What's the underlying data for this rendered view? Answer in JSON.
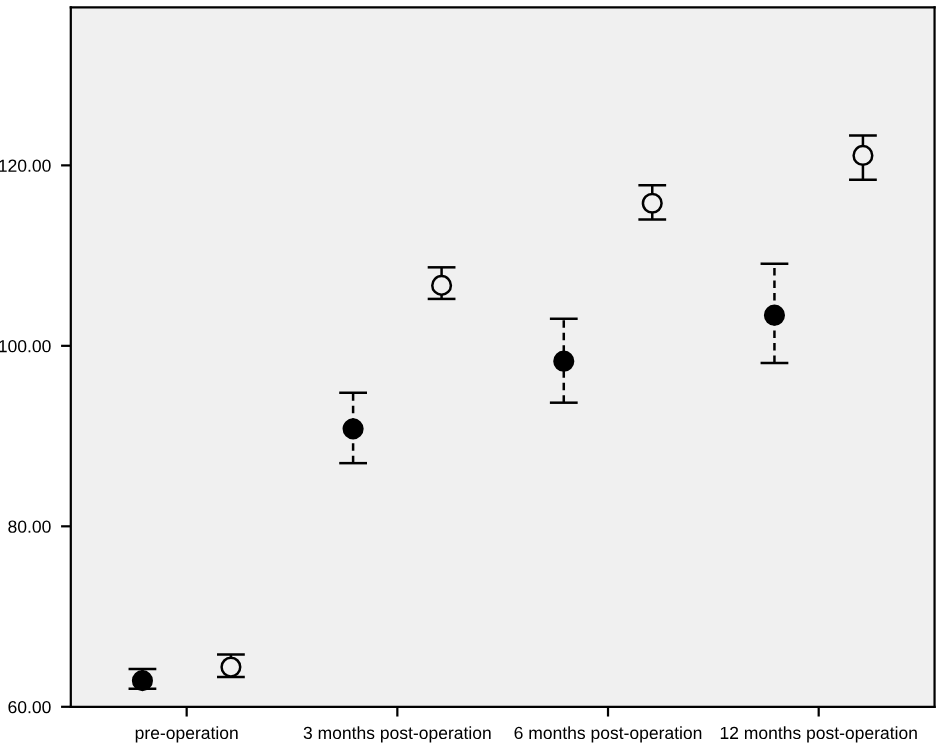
{
  "chart_data": {
    "type": "scatter",
    "categories": [
      "pre-operation",
      "3 months post-operation",
      "6 months post-operation",
      "12 months post-operation"
    ],
    "series": [
      {
        "color": "#000000",
        "values": [
          62.9,
          90.8,
          98.3,
          103.4
        ],
        "errors": [
          [
            62.0,
            64.2
          ],
          [
            87.0,
            94.8
          ],
          [
            93.7,
            103.0
          ],
          [
            98.1,
            109.1
          ]
        ],
        "line_style": "dashed",
        "marker": "circle"
      },
      {
        "color": "#000000",
        "values": [
          64.4,
          106.7,
          115.8,
          121.1
        ],
        "errors": [
          [
            63.3,
            65.8
          ],
          [
            105.2,
            108.7
          ],
          [
            114.0,
            117.8
          ],
          [
            118.4,
            123.3
          ]
        ],
        "line_style": "solid",
        "marker": "circle"
      }
    ],
    "ylim": [
      60,
      137.5
    ],
    "yticks": [
      {
        "value": 60,
        "label": "60.00"
      },
      {
        "value": 80,
        "label": "80.00"
      },
      {
        "value": 100,
        "label": "100.00"
      },
      {
        "value": 120,
        "label": "120.00"
      }
    ],
    "grid": false,
    "legend": false
  }
}
